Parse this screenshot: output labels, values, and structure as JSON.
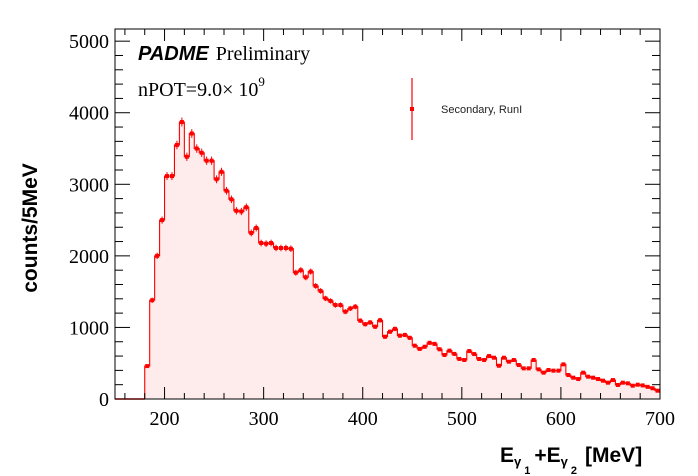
{
  "chart_data": {
    "type": "bar",
    "style": "histogram",
    "title": "",
    "xlabel": "E_γ1 + E_γ2 [MeV]",
    "xlabel_parts": {
      "e1": "E",
      "g1": "γ",
      "s1": "1",
      "plus": "+E",
      "g2": "γ",
      "s2": "2",
      "unit": "[MeV]"
    },
    "ylabel": "counts/5MeV",
    "xlim": [
      150,
      700
    ],
    "ylim": [
      0,
      5170
    ],
    "bin_width": 5,
    "bin_start": 180,
    "x_ticks": [
      200,
      300,
      400,
      500,
      600,
      700
    ],
    "y_ticks": [
      0,
      1000,
      2000,
      3000,
      4000,
      5000
    ],
    "grid": false,
    "series": [
      {
        "name": "Secondary, RunI",
        "color": "#ff0000",
        "fill": "#fdeceb",
        "values": [
          460,
          1380,
          2000,
          2500,
          3115,
          3115,
          3550,
          3870,
          3385,
          3710,
          3500,
          3440,
          3330,
          3330,
          3070,
          3175,
          2910,
          2790,
          2630,
          2620,
          2680,
          2320,
          2390,
          2180,
          2170,
          2180,
          2110,
          2110,
          2110,
          2100,
          1765,
          1800,
          1700,
          1780,
          1580,
          1510,
          1405,
          1370,
          1313,
          1313,
          1220,
          1265,
          1290,
          1095,
          1045,
          1070,
          1010,
          1100,
          870,
          940,
          980,
          885,
          895,
          855,
          745,
          700,
          730,
          785,
          770,
          695,
          615,
          675,
          630,
          560,
          545,
          670,
          628,
          559,
          545,
          600,
          577,
          465,
          577,
          521,
          545,
          475,
          428,
          428,
          545,
          414,
          368,
          405,
          396,
          396,
          484,
          335,
          298,
          279,
          368,
          312,
          298,
          279,
          256,
          228,
          265,
          196,
          228,
          219,
          186,
          200,
          190,
          170,
          150,
          116
        ]
      }
    ],
    "legend": {
      "position": "top-right",
      "entries": [
        "Secondary, RunI"
      ]
    },
    "annotations": {
      "brand": "PADME",
      "status": "Preliminary",
      "npot_prefix": "nPOT=9.0× 10",
      "npot_exp": "9"
    }
  }
}
